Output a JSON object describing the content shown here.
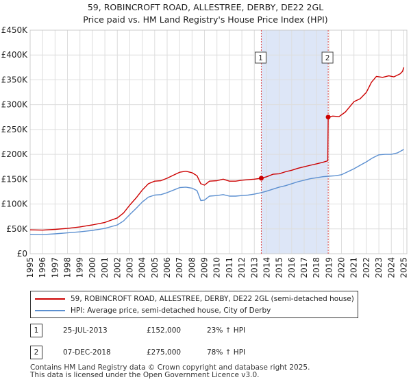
{
  "title_line1": "59, ROBINCROFT ROAD, ALLESTREE, DERBY, DE22 2GL",
  "title_line2": "Price paid vs. HM Land Registry's House Price Index (HPI)",
  "colors": {
    "property": "#cc0000",
    "hpi": "#5b8fd0",
    "shade": "#dde6f7",
    "grid": "#dddddd",
    "marker_line": "#dd4444"
  },
  "chart_data": {
    "type": "line",
    "title": "Price paid vs. HM Land Registry's House Price Index (HPI)",
    "xlim": [
      1995,
      2025.25
    ],
    "ylim": [
      0,
      450000
    ],
    "y_ticks": [
      {
        "value": 0,
        "label": "£0"
      },
      {
        "value": 50000,
        "label": "£50K"
      },
      {
        "value": 100000,
        "label": "£100K"
      },
      {
        "value": 150000,
        "label": "£150K"
      },
      {
        "value": 200000,
        "label": "£200K"
      },
      {
        "value": 250000,
        "label": "£250K"
      },
      {
        "value": 300000,
        "label": "£300K"
      },
      {
        "value": 350000,
        "label": "£350K"
      },
      {
        "value": 400000,
        "label": "£400K"
      },
      {
        "value": 450000,
        "label": "£450K"
      }
    ],
    "x_ticks": [
      "1995",
      "1996",
      "1997",
      "1998",
      "1999",
      "2000",
      "2001",
      "2002",
      "2003",
      "2004",
      "2005",
      "2006",
      "2007",
      "2008",
      "2009",
      "2010",
      "2011",
      "2012",
      "2013",
      "2014",
      "2015",
      "2016",
      "2017",
      "2018",
      "2019",
      "2020",
      "2021",
      "2022",
      "2023",
      "2024",
      "2025"
    ],
    "shaded_range": [
      2013.56,
      2018.93
    ],
    "series": [
      {
        "name": "59, ROBINCROFT ROAD, ALLESTREE, DERBY, DE22 2GL (semi-detached house)",
        "color": "#cc0000",
        "points": [
          [
            1995.0,
            48000
          ],
          [
            1996.0,
            47500
          ],
          [
            1997.0,
            49000
          ],
          [
            1998.0,
            51000
          ],
          [
            1999.0,
            54000
          ],
          [
            2000.0,
            58000
          ],
          [
            2001.0,
            63000
          ],
          [
            2002.0,
            72000
          ],
          [
            2002.5,
            82000
          ],
          [
            2003.0,
            98000
          ],
          [
            2003.5,
            112000
          ],
          [
            2004.0,
            128000
          ],
          [
            2004.5,
            141000
          ],
          [
            2005.0,
            146000
          ],
          [
            2005.5,
            147000
          ],
          [
            2006.0,
            152000
          ],
          [
            2006.5,
            158000
          ],
          [
            2007.0,
            164000
          ],
          [
            2007.5,
            166000
          ],
          [
            2008.0,
            163000
          ],
          [
            2008.4,
            157000
          ],
          [
            2008.7,
            141000
          ],
          [
            2009.0,
            138000
          ],
          [
            2009.4,
            146000
          ],
          [
            2010.0,
            147000
          ],
          [
            2010.5,
            150000
          ],
          [
            2011.0,
            146000
          ],
          [
            2011.5,
            146000
          ],
          [
            2012.0,
            148000
          ],
          [
            2012.5,
            149000
          ],
          [
            2013.0,
            150000
          ],
          [
            2013.56,
            152000
          ],
          [
            2014.0,
            155000
          ],
          [
            2014.5,
            160000
          ],
          [
            2015.0,
            161000
          ],
          [
            2015.5,
            165000
          ],
          [
            2016.0,
            168000
          ],
          [
            2016.5,
            172000
          ],
          [
            2017.0,
            175000
          ],
          [
            2017.5,
            178000
          ],
          [
            2018.0,
            181000
          ],
          [
            2018.5,
            184000
          ],
          [
            2018.9,
            187000
          ],
          [
            2018.93,
            275000
          ],
          [
            2019.3,
            277000
          ],
          [
            2019.8,
            276000
          ],
          [
            2020.3,
            285000
          ],
          [
            2020.7,
            297000
          ],
          [
            2021.0,
            306000
          ],
          [
            2021.5,
            312000
          ],
          [
            2022.0,
            325000
          ],
          [
            2022.4,
            345000
          ],
          [
            2022.8,
            357000
          ],
          [
            2023.3,
            355000
          ],
          [
            2023.8,
            358000
          ],
          [
            2024.2,
            356000
          ],
          [
            2024.7,
            362000
          ],
          [
            2024.9,
            367000
          ],
          [
            2025.0,
            375000
          ]
        ]
      },
      {
        "name": "HPI: Average price, semi-detached house, City of Derby",
        "color": "#5b8fd0",
        "points": [
          [
            1995.0,
            39000
          ],
          [
            1996.0,
            38500
          ],
          [
            1997.0,
            40000
          ],
          [
            1998.0,
            42000
          ],
          [
            1999.0,
            44000
          ],
          [
            2000.0,
            47000
          ],
          [
            2001.0,
            51000
          ],
          [
            2002.0,
            58000
          ],
          [
            2002.5,
            66000
          ],
          [
            2003.0,
            79000
          ],
          [
            2003.5,
            91000
          ],
          [
            2004.0,
            104000
          ],
          [
            2004.5,
            114000
          ],
          [
            2005.0,
            118000
          ],
          [
            2005.5,
            119000
          ],
          [
            2006.0,
            123000
          ],
          [
            2006.5,
            128000
          ],
          [
            2007.0,
            133000
          ],
          [
            2007.5,
            134000
          ],
          [
            2008.0,
            132000
          ],
          [
            2008.4,
            127000
          ],
          [
            2008.7,
            107000
          ],
          [
            2009.0,
            108000
          ],
          [
            2009.4,
            116000
          ],
          [
            2010.0,
            117000
          ],
          [
            2010.5,
            119000
          ],
          [
            2011.0,
            116000
          ],
          [
            2011.5,
            116000
          ],
          [
            2012.0,
            117000
          ],
          [
            2012.5,
            118000
          ],
          [
            2013.0,
            120000
          ],
          [
            2013.56,
            123000
          ],
          [
            2014.0,
            126000
          ],
          [
            2014.5,
            130000
          ],
          [
            2015.0,
            134000
          ],
          [
            2015.5,
            137000
          ],
          [
            2016.0,
            141000
          ],
          [
            2016.5,
            145000
          ],
          [
            2017.0,
            148000
          ],
          [
            2017.5,
            151000
          ],
          [
            2018.0,
            153000
          ],
          [
            2018.5,
            155000
          ],
          [
            2018.93,
            156000
          ],
          [
            2019.5,
            157000
          ],
          [
            2020.0,
            159000
          ],
          [
            2020.5,
            165000
          ],
          [
            2021.0,
            171000
          ],
          [
            2021.5,
            178000
          ],
          [
            2022.0,
            185000
          ],
          [
            2022.5,
            193000
          ],
          [
            2023.0,
            199000
          ],
          [
            2023.5,
            200000
          ],
          [
            2024.0,
            200000
          ],
          [
            2024.5,
            203000
          ],
          [
            2025.0,
            210000
          ]
        ]
      }
    ],
    "markers": [
      {
        "label": "1",
        "x": 2013.56,
        "y": 152000
      },
      {
        "label": "2",
        "x": 2018.93,
        "y": 275000
      }
    ]
  },
  "legend": {
    "property_label": "59, ROBINCROFT ROAD, ALLESTREE, DERBY, DE22 2GL (semi-detached house)",
    "hpi_label": "HPI: Average price, semi-detached house, City of Derby"
  },
  "transactions": [
    {
      "num": "1",
      "date": "25-JUL-2013",
      "price": "£152,000",
      "hpi": "23% ↑ HPI"
    },
    {
      "num": "2",
      "date": "07-DEC-2018",
      "price": "£275,000",
      "hpi": "78% ↑ HPI"
    }
  ],
  "footer_line1": "Contains HM Land Registry data © Crown copyright and database right 2025.",
  "footer_line2": "This data is licensed under the Open Government Licence v3.0."
}
